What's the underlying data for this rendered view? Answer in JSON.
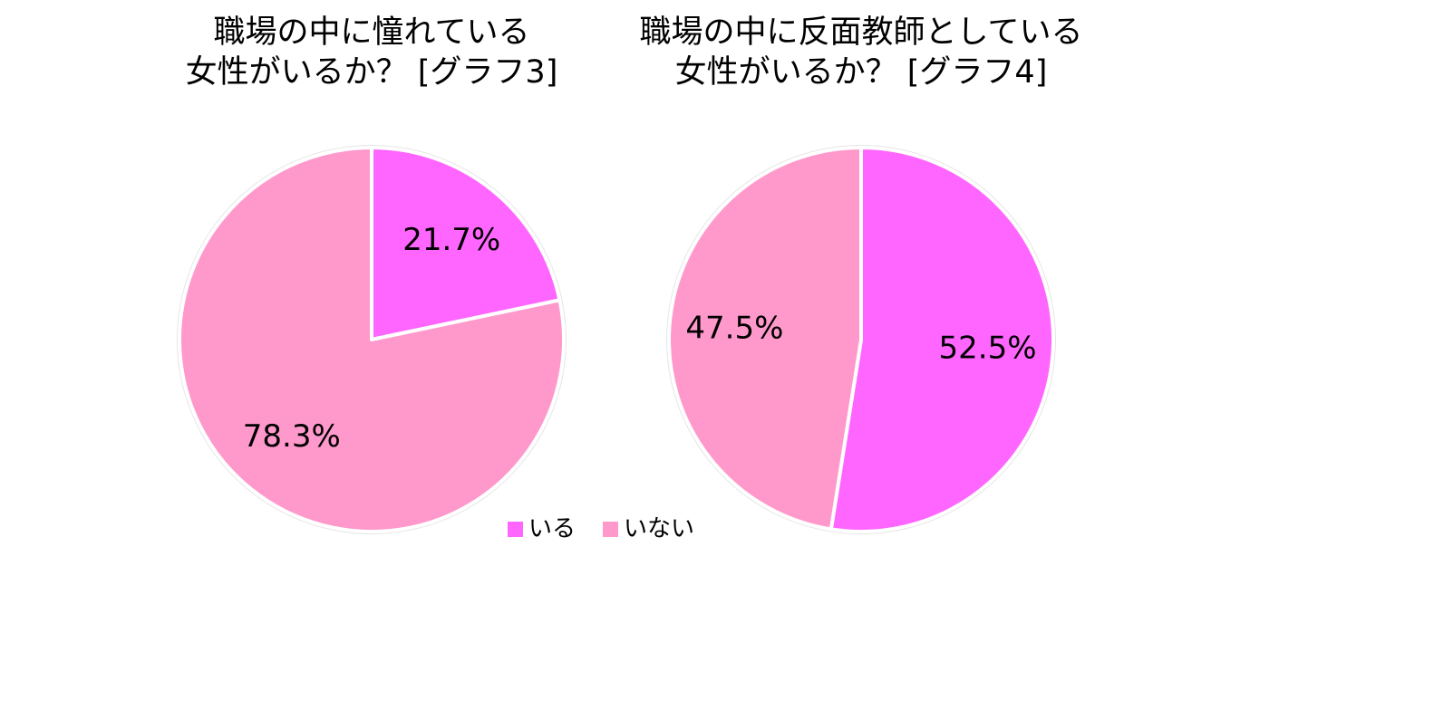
{
  "chart_data": [
    {
      "type": "pie",
      "title_lines": [
        "職場の中に憧れている",
        "女性がいるか？ [グラフ3]"
      ],
      "categories": [
        "いる",
        "いない"
      ],
      "values": [
        21.7,
        78.3
      ],
      "labels": [
        "21.7%",
        "78.3%"
      ],
      "colors": [
        "#ff66ff",
        "#ff99cc"
      ],
      "start_angle": "12 o'clock, clockwise"
    },
    {
      "type": "pie",
      "title_lines": [
        "職場の中に反面教師としている",
        "女性がいるか？ [グラフ4]"
      ],
      "categories": [
        "いる",
        "いない"
      ],
      "values": [
        52.5,
        47.5
      ],
      "labels": [
        "52.5%",
        "47.5%"
      ],
      "colors": [
        "#ff66ff",
        "#ff99cc"
      ],
      "start_angle": "12 o'clock, clockwise"
    }
  ],
  "legend": {
    "placement": "bottom-center",
    "items": [
      {
        "label": "いる",
        "color": "#ff66ff"
      },
      {
        "label": "いない",
        "color": "#ff99cc"
      }
    ]
  }
}
